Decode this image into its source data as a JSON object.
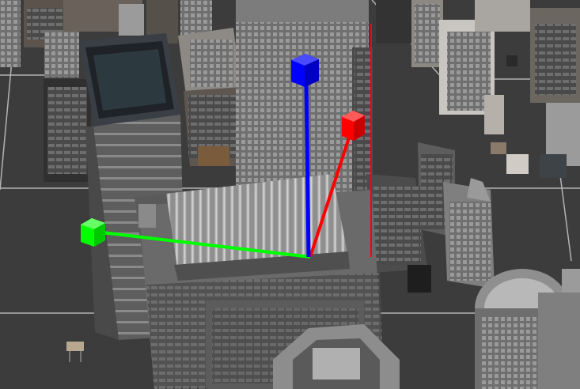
{
  "viewport": {
    "background": "#3b3b3b",
    "grid_color": "#c8c8c8"
  },
  "gizmo": {
    "x_axis_color": "#ff0000",
    "y_axis_color": "#00ff00",
    "z_axis_color": "#0000ff",
    "x_handle_icon": "cube-handle-icon",
    "y_handle_icon": "cube-handle-icon",
    "z_handle_icon": "cube-handle-icon"
  },
  "selection_line_color": "#ff0000"
}
